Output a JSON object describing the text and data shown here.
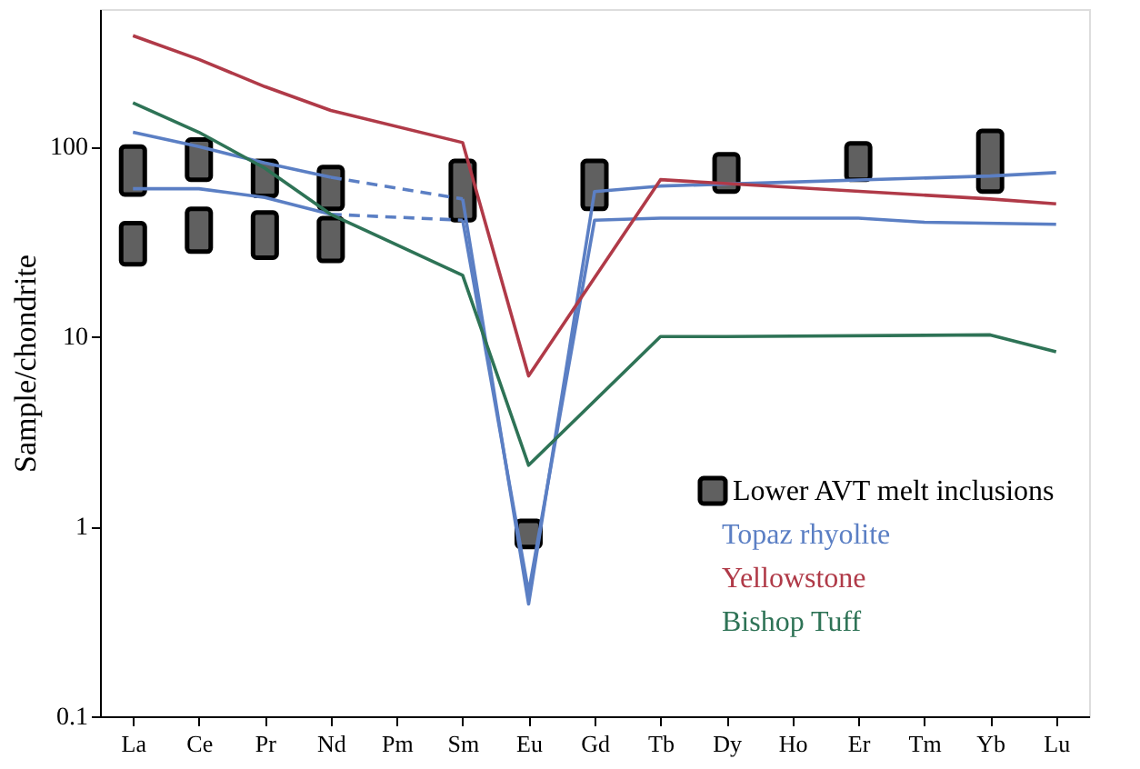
{
  "chart_data": {
    "type": "line",
    "ylabel": "Sample/chondrite",
    "categories": [
      "La",
      "Ce",
      "Pr",
      "Nd",
      "Pm",
      "Sm",
      "Eu",
      "Gd",
      "Tb",
      "Dy",
      "Ho",
      "Er",
      "Tm",
      "Yb",
      "Lu"
    ],
    "log": "y",
    "ylim": [
      0.1,
      530
    ],
    "yticks": [
      0.1,
      1,
      10,
      100
    ],
    "grid": false,
    "legend": "bottom right",
    "marker": "none",
    "series": [
      {
        "name": "Lower AVT melt inclusions",
        "type": "bar",
        "color": "#606060",
        "base": [
          56,
          67,
          55,
          47,
          null,
          41,
          0.78,
          47,
          null,
          58,
          null,
          67,
          null,
          58,
          null
        ],
        "values": [
          44,
          42,
          29,
          31,
          null,
          43,
          0.29,
          37,
          null,
          33,
          null,
          37,
          null,
          63,
          null
        ]
      },
      {
        "type": "bar",
        "color": "#606060",
        "base": [
          24,
          28,
          26,
          25,
          null,
          null,
          null,
          null,
          null,
          null,
          null,
          null,
          null,
          null,
          null
        ],
        "values": [
          15.5,
          19,
          19,
          17,
          null,
          null,
          null,
          null,
          null,
          null,
          null,
          null,
          null,
          null,
          null
        ]
      },
      {
        "name": "Topaz rhyolite",
        "color": "#5b7fc4",
        "line_style": "solid",
        "values": [
          119,
          100,
          82,
          69,
          null,
          null,
          null,
          null,
          null,
          null,
          null,
          null,
          null,
          null,
          null
        ]
      },
      {
        "color": "#5b7fc4",
        "line_style": "dashed",
        "values": [
          null,
          null,
          null,
          69,
          null,
          53,
          null,
          null,
          null,
          null,
          null,
          null,
          null,
          null,
          null
        ]
      },
      {
        "color": "#5b7fc4",
        "line_style": "solid",
        "values": [
          null,
          null,
          null,
          null,
          null,
          53,
          0.39,
          58,
          62,
          null,
          null,
          null,
          null,
          70,
          73
        ]
      },
      {
        "color": "#5b7fc4",
        "line_style": "solid",
        "values": [
          60,
          60,
          54,
          44,
          null,
          null,
          null,
          null,
          null,
          null,
          null,
          null,
          null,
          null,
          null
        ]
      },
      {
        "color": "#5b7fc4",
        "line_style": "dashed",
        "values": [
          null,
          null,
          null,
          44,
          null,
          41,
          null,
          null,
          null,
          null,
          null,
          null,
          null,
          null,
          null
        ]
      },
      {
        "color": "#5b7fc4",
        "line_style": "solid",
        "values": [
          null,
          null,
          null,
          null,
          null,
          41,
          0.45,
          41,
          42,
          null,
          null,
          42,
          40,
          null,
          39
        ]
      },
      {
        "name": "Yellowstone",
        "color": "#b03a48",
        "line_style": "solid",
        "values": [
          384,
          288,
          207,
          155,
          null,
          105,
          6.2,
          null,
          67,
          null,
          null,
          null,
          null,
          53,
          50
        ]
      },
      {
        "name": "Bishop Tuff",
        "color": "#2e7356",
        "line_style": "solid",
        "values": [
          170,
          119,
          77,
          44,
          null,
          21,
          2.1,
          null,
          10,
          10,
          null,
          null,
          null,
          10.2,
          8.3
        ]
      }
    ]
  }
}
